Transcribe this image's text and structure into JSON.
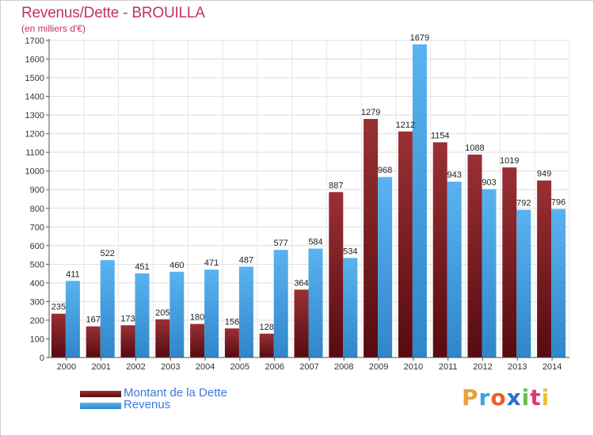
{
  "title": "Revenus/Dette - BROUILLA",
  "subtitle": "(en milliers d'€)",
  "legend": {
    "debt_label": "Montant de la Dette",
    "revenue_label": "Revenus"
  },
  "logo": {
    "text": "Proxiti"
  },
  "colors": {
    "debt": "#7a1a1e",
    "revenue": "#4aa3e6",
    "title": "#c0306a",
    "legend_text": "#3a78e0"
  },
  "chart_data": {
    "type": "bar",
    "categories": [
      "2000",
      "2001",
      "2002",
      "2003",
      "2004",
      "2005",
      "2006",
      "2007",
      "2008",
      "2009",
      "2010",
      "2011",
      "2012",
      "2013",
      "2014"
    ],
    "series": [
      {
        "name": "Montant de la Dette",
        "values": [
          235,
          167,
          173,
          205,
          180,
          156,
          128,
          364,
          887,
          1279,
          1212,
          1154,
          1088,
          1019,
          949
        ]
      },
      {
        "name": "Revenus",
        "values": [
          411,
          522,
          451,
          460,
          471,
          487,
          577,
          584,
          534,
          968,
          1679,
          943,
          903,
          792,
          796
        ]
      }
    ],
    "yticks": [
      0,
      100,
      200,
      300,
      400,
      500,
      600,
      700,
      800,
      900,
      1000,
      1100,
      1200,
      1300,
      1400,
      1500,
      1600,
      1700
    ],
    "ylim": [
      0,
      1700
    ],
    "grid": true,
    "legend_position": "bottom-left"
  }
}
